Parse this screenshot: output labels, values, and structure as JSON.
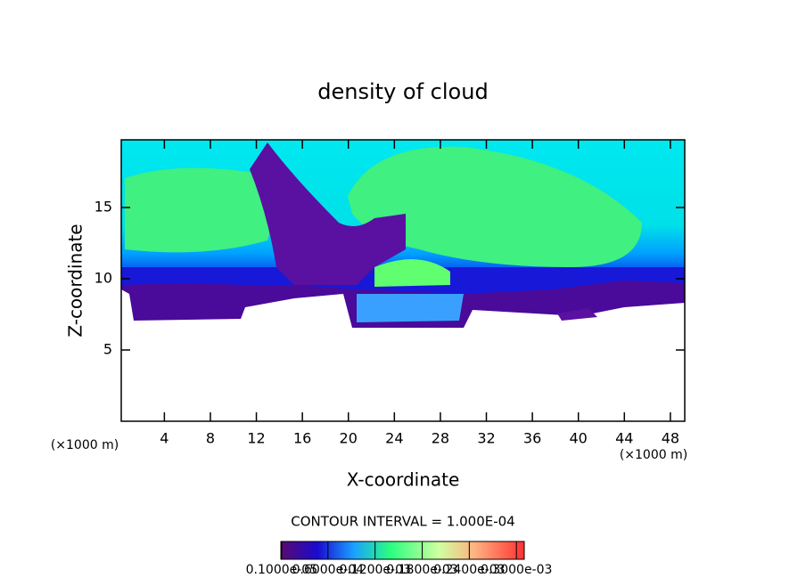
{
  "chart_data": {
    "type": "contour",
    "title": "density of cloud",
    "x_label": "X-coordinate",
    "y_label": "Z-coordinate",
    "x_unit": "(×1000 m)",
    "y_unit": "(×1000 m)",
    "xlim": [
      0.25,
      49.25
    ],
    "ylim": [
      0,
      19.75
    ],
    "xticks": [
      4,
      8,
      12,
      16,
      20,
      24,
      28,
      32,
      36,
      40,
      44,
      48
    ],
    "yticks": [
      5,
      10,
      15
    ],
    "contour_interval": "CONTOUR INTERVAL = 1.000E-04",
    "colorbar_lim": [
      0,
      0.00031
    ],
    "colorbar_ticks": [
      {
        "value": 1e-06,
        "label": "0.1000e-05"
      },
      {
        "value": 6e-05,
        "label": "0.6000e-04"
      },
      {
        "value": 0.00012,
        "label": "0.1200e-03"
      },
      {
        "value": 0.00018,
        "label": "0.1800e-03"
      },
      {
        "value": 0.00024,
        "label": "0.2400e-03"
      },
      {
        "value": 0.0003,
        "label": "0.3000e-03"
      }
    ]
  }
}
